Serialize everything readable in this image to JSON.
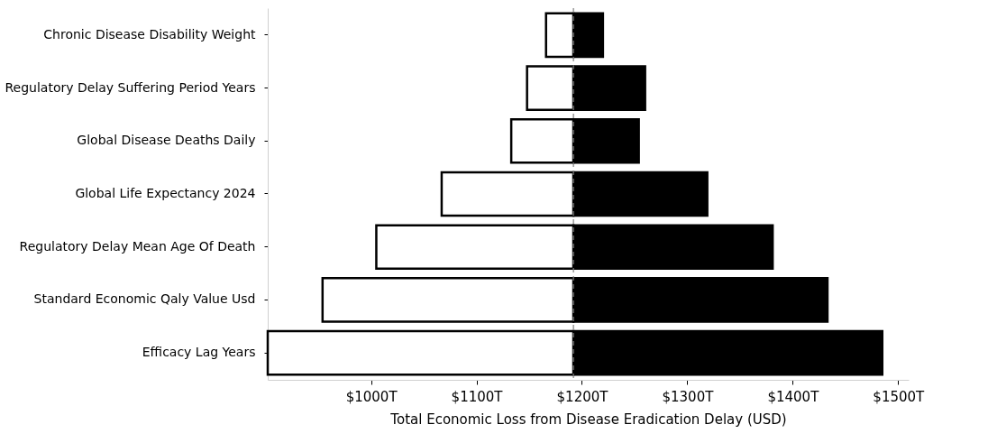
{
  "chart_data": {
    "type": "bar",
    "orientation": "horizontal",
    "xlabel": "Total Economic Loss from Disease Eradication Delay (USD)",
    "categories": [
      "Chronic Disease Disability Weight",
      "Regulatory Delay Suffering Period Years",
      "Global Disease Deaths Daily",
      "Global Life Expectancy 2024",
      "Regulatory Delay Mean Age Of Death",
      "Standard Economic Qaly Value Usd",
      "Efficacy Lag Years"
    ],
    "series": [
      {
        "color": "#ffffff",
        "base": [
          1166,
          1148,
          1133,
          1067,
          1005,
          954,
          902
        ],
        "values": [
          26,
          44,
          59,
          125,
          187,
          238,
          290
        ]
      },
      {
        "color": "#000000",
        "base": [
          1192,
          1192,
          1192,
          1192,
          1192,
          1192,
          1192
        ],
        "values": [
          28,
          68,
          62,
          127,
          189,
          241,
          293
        ]
      }
    ],
    "xlim": [
      902,
      1510
    ],
    "xticks": [
      {
        "value": 1000,
        "label": "$1000T"
      },
      {
        "value": 1100,
        "label": "$1100T"
      },
      {
        "value": 1200,
        "label": "$1200T"
      },
      {
        "value": 1300,
        "label": "$1300T"
      },
      {
        "value": 1400,
        "label": "$1400T"
      },
      {
        "value": 1500,
        "label": "$1500T"
      }
    ],
    "ref_lines": [
      {
        "axis": "x",
        "value": 1192,
        "color": "#808080",
        "line_style": "dashed"
      }
    ],
    "grid": false
  }
}
